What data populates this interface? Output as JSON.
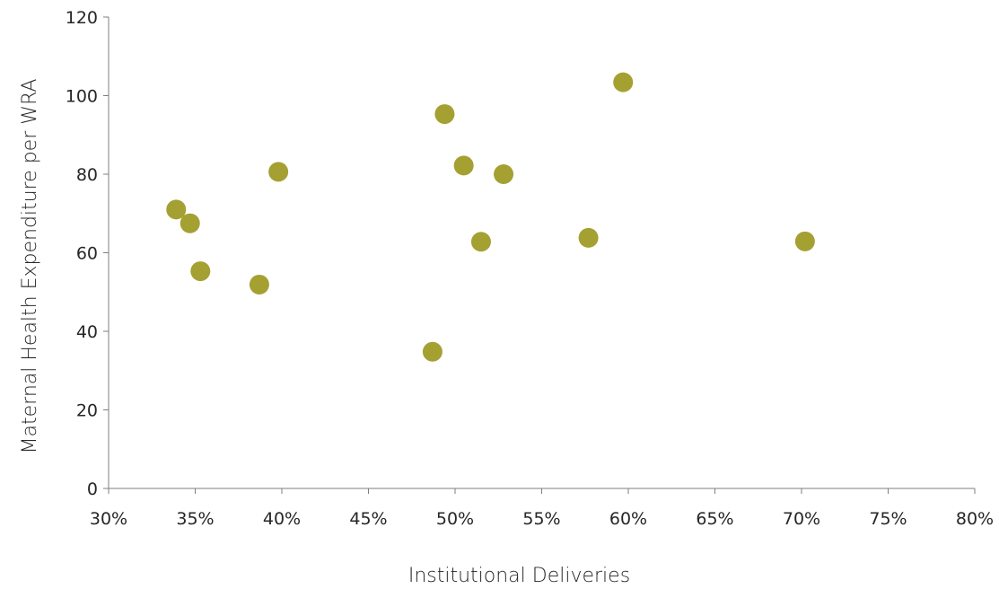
{
  "chart_data": {
    "type": "scatter",
    "title": "",
    "xlabel": "Institutional Deliveries",
    "ylabel": "Maternal Health Expenditure per WRA",
    "xlim": [
      0.3,
      0.8
    ],
    "ylim": [
      0,
      120
    ],
    "x_ticks": [
      0.3,
      0.35,
      0.4,
      0.45,
      0.5,
      0.55,
      0.6,
      0.65,
      0.7,
      0.75,
      0.8
    ],
    "x_tick_labels": [
      "30%",
      "35%",
      "40%",
      "45%",
      "50%",
      "55%",
      "60%",
      "65%",
      "70%",
      "75%",
      "80%"
    ],
    "y_ticks": [
      0,
      20,
      40,
      60,
      80,
      100,
      120
    ],
    "y_tick_labels": [
      "0",
      "20",
      "40",
      "60",
      "80",
      "100",
      "120"
    ],
    "grid": false,
    "legend": "none",
    "marker_color": "#a5a032",
    "series": [
      {
        "points": [
          {
            "x": 0.339,
            "y": 71
          },
          {
            "x": 0.347,
            "y": 67.5
          },
          {
            "x": 0.353,
            "y": 55.3
          },
          {
            "x": 0.387,
            "y": 51.9
          },
          {
            "x": 0.398,
            "y": 80.6
          },
          {
            "x": 0.487,
            "y": 34.8
          },
          {
            "x": 0.494,
            "y": 95.3
          },
          {
            "x": 0.505,
            "y": 82.2
          },
          {
            "x": 0.515,
            "y": 62.8
          },
          {
            "x": 0.528,
            "y": 80
          },
          {
            "x": 0.577,
            "y": 63.8
          },
          {
            "x": 0.597,
            "y": 103.4
          },
          {
            "x": 0.702,
            "y": 62.9
          }
        ]
      }
    ]
  }
}
